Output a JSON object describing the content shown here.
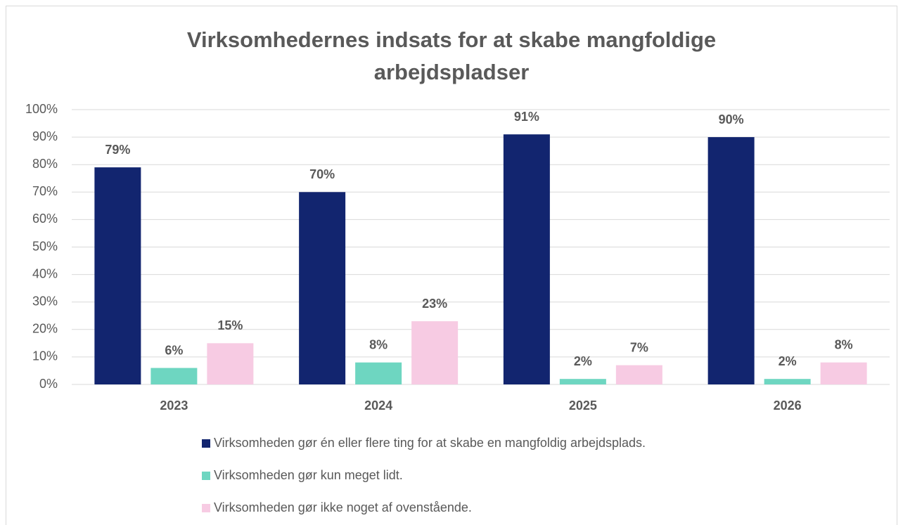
{
  "chart_data": {
    "type": "bar",
    "title": "Virksomhedernes indsats for at skabe mangfoldige arbejdspladser",
    "categories": [
      "2023",
      "2024",
      "2025",
      "2026"
    ],
    "series": [
      {
        "name": "Virksomheden gør én eller flere ting for at skabe en mangfoldig arbejdsplads.",
        "color": "#12256f",
        "values": [
          79,
          70,
          91,
          90
        ],
        "value_labels": [
          "79%",
          "70%",
          "91%",
          "90%"
        ]
      },
      {
        "name": "Virksomheden gør kun meget lidt.",
        "color": "#6ed6c1",
        "values": [
          6,
          8,
          2,
          2
        ],
        "value_labels": [
          "6%",
          "8%",
          "2%",
          "2%"
        ]
      },
      {
        "name": "Virksomheden gør ikke noget af ovenstående.",
        "color": "#f7cbe3",
        "values": [
          15,
          23,
          7,
          8
        ],
        "value_labels": [
          "15%",
          "23%",
          "7%",
          "8%"
        ]
      }
    ],
    "ylim": [
      0,
      100
    ],
    "yticks": [
      {
        "value": 0,
        "label": "0%"
      },
      {
        "value": 10,
        "label": "10%"
      },
      {
        "value": 20,
        "label": "20%"
      },
      {
        "value": 30,
        "label": "30%"
      },
      {
        "value": 40,
        "label": "40%"
      },
      {
        "value": 50,
        "label": "50%"
      },
      {
        "value": 60,
        "label": "60%"
      },
      {
        "value": 70,
        "label": "70%"
      },
      {
        "value": 80,
        "label": "80%"
      },
      {
        "value": 90,
        "label": "90%"
      },
      {
        "value": 100,
        "label": "100%"
      }
    ],
    "grid": true,
    "legend": "bottom"
  }
}
